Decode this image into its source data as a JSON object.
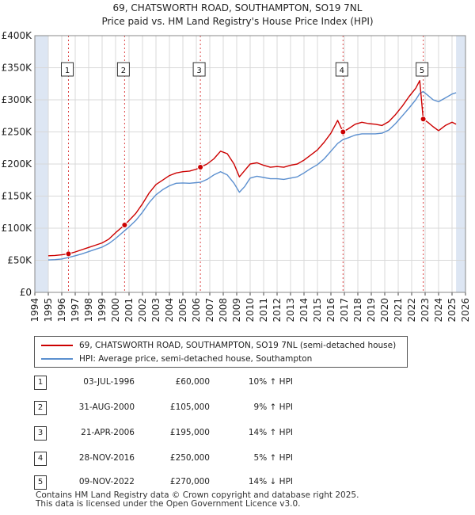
{
  "title_line1": "69, CHATSWORTH ROAD, SOUTHAMPTON, SO19 7NL",
  "title_line2": "Price paid vs. HM Land Registry's House Price Index (HPI)",
  "legend": {
    "property": "69, CHATSWORTH ROAD, SOUTHAMPTON, SO19 7NL (semi-detached house)",
    "hpi": "HPI: Average price, semi-detached house, Southampton"
  },
  "sales": [
    {
      "num": "1",
      "date": "03-JUL-1996",
      "price": "£60,000",
      "rel": "10% ↑ HPI"
    },
    {
      "num": "2",
      "date": "31-AUG-2000",
      "price": "£105,000",
      "rel": "9% ↑ HPI"
    },
    {
      "num": "3",
      "date": "21-APR-2006",
      "price": "£195,000",
      "rel": "14% ↑ HPI"
    },
    {
      "num": "4",
      "date": "28-NOV-2016",
      "price": "£250,000",
      "rel": "5% ↑ HPI"
    },
    {
      "num": "5",
      "date": "09-NOV-2022",
      "price": "£270,000",
      "rel": "14% ↓ HPI"
    }
  ],
  "footer_line1": "Contains HM Land Registry data © Crown copyright and database right 2025.",
  "footer_line2": "This data is licensed under the Open Government Licence v3.0.",
  "colors": {
    "property": "#cc0000",
    "hpi": "#5b8fcf",
    "shade": "#dde6f3",
    "grid": "#d8d8d8",
    "vline": "#dd4444"
  },
  "chart_data": {
    "type": "line",
    "title": "69, CHATSWORTH ROAD, SOUTHAMPTON, SO19 7NL",
    "subtitle": "Price paid vs. HM Land Registry's House Price Index (HPI)",
    "xlim": [
      1994,
      2026
    ],
    "ylim": [
      0,
      400000
    ],
    "x_ticks": [
      1994,
      1995,
      1996,
      1997,
      1998,
      1999,
      2000,
      2001,
      2002,
      2003,
      2004,
      2005,
      2006,
      2007,
      2008,
      2009,
      2010,
      2011,
      2012,
      2013,
      2014,
      2015,
      2016,
      2017,
      2018,
      2019,
      2020,
      2021,
      2022,
      2023,
      2024,
      2025,
      2026
    ],
    "y_ticks": [
      {
        "value": 0,
        "label": "£0"
      },
      {
        "value": 50000,
        "label": "£50K"
      },
      {
        "value": 100000,
        "label": "£100K"
      },
      {
        "value": 150000,
        "label": "£150K"
      },
      {
        "value": 200000,
        "label": "£200K"
      },
      {
        "value": 250000,
        "label": "£250K"
      },
      {
        "value": 300000,
        "label": "£300K"
      },
      {
        "value": 350000,
        "label": "£350K"
      },
      {
        "value": 400000,
        "label": "£400K"
      }
    ],
    "shaded_ranges": [
      [
        1994,
        1995.0
      ],
      [
        2025.3,
        2026
      ]
    ],
    "series": [
      {
        "name": "69, CHATSWORTH ROAD, SOUTHAMPTON, SO19 7NL (semi-detached house)",
        "points": [
          [
            1995.0,
            57000
          ],
          [
            1995.5,
            57500
          ],
          [
            1996.0,
            58500
          ],
          [
            1996.5,
            60000
          ],
          [
            1997.0,
            63000
          ],
          [
            1997.5,
            66500
          ],
          [
            1998.0,
            70000
          ],
          [
            1998.5,
            73500
          ],
          [
            1999.0,
            77000
          ],
          [
            1999.5,
            83000
          ],
          [
            2000.0,
            93000
          ],
          [
            2000.67,
            105000
          ],
          [
            2001.0,
            112000
          ],
          [
            2001.5,
            123000
          ],
          [
            2002.0,
            138000
          ],
          [
            2002.5,
            155000
          ],
          [
            2003.0,
            168000
          ],
          [
            2003.5,
            175000
          ],
          [
            2004.0,
            182000
          ],
          [
            2004.5,
            186000
          ],
          [
            2005.0,
            188000
          ],
          [
            2005.5,
            189000
          ],
          [
            2006.0,
            192000
          ],
          [
            2006.3,
            195000
          ],
          [
            2006.8,
            200000
          ],
          [
            2007.3,
            208000
          ],
          [
            2007.8,
            220000
          ],
          [
            2008.3,
            216000
          ],
          [
            2008.8,
            200000
          ],
          [
            2009.2,
            180000
          ],
          [
            2009.6,
            190000
          ],
          [
            2010.0,
            200000
          ],
          [
            2010.5,
            202000
          ],
          [
            2011.0,
            198000
          ],
          [
            2011.5,
            195000
          ],
          [
            2012.0,
            196000
          ],
          [
            2012.5,
            195000
          ],
          [
            2013.0,
            198000
          ],
          [
            2013.5,
            200000
          ],
          [
            2014.0,
            206000
          ],
          [
            2014.5,
            214000
          ],
          [
            2015.0,
            222000
          ],
          [
            2015.5,
            234000
          ],
          [
            2016.0,
            248000
          ],
          [
            2016.5,
            268000
          ],
          [
            2016.9,
            250000
          ],
          [
            2017.3,
            255000
          ],
          [
            2017.8,
            262000
          ],
          [
            2018.3,
            265000
          ],
          [
            2018.8,
            263000
          ],
          [
            2019.3,
            262000
          ],
          [
            2019.8,
            260000
          ],
          [
            2020.3,
            266000
          ],
          [
            2020.8,
            277000
          ],
          [
            2021.3,
            290000
          ],
          [
            2021.8,
            305000
          ],
          [
            2022.3,
            318000
          ],
          [
            2022.6,
            330000
          ],
          [
            2022.86,
            270000
          ],
          [
            2023.2,
            265000
          ],
          [
            2023.6,
            258000
          ],
          [
            2024.0,
            252000
          ],
          [
            2024.5,
            260000
          ],
          [
            2025.0,
            265000
          ],
          [
            2025.3,
            262000
          ]
        ]
      },
      {
        "name": "HPI: Average price, semi-detached house, Southampton",
        "points": [
          [
            1995.0,
            50500
          ],
          [
            1995.5,
            51000
          ],
          [
            1996.0,
            52000
          ],
          [
            1996.5,
            54500
          ],
          [
            1997.0,
            57000
          ],
          [
            1997.5,
            60000
          ],
          [
            1998.0,
            63500
          ],
          [
            1998.5,
            67000
          ],
          [
            1999.0,
            70500
          ],
          [
            1999.5,
            76000
          ],
          [
            2000.0,
            84000
          ],
          [
            2000.67,
            96000
          ],
          [
            2001.0,
            102000
          ],
          [
            2001.5,
            112000
          ],
          [
            2002.0,
            125000
          ],
          [
            2002.5,
            140000
          ],
          [
            2003.0,
            152000
          ],
          [
            2003.5,
            160000
          ],
          [
            2004.0,
            166000
          ],
          [
            2004.5,
            170000
          ],
          [
            2005.0,
            170500
          ],
          [
            2005.5,
            170000
          ],
          [
            2006.0,
            171000
          ],
          [
            2006.3,
            171500
          ],
          [
            2006.8,
            176000
          ],
          [
            2007.3,
            183000
          ],
          [
            2007.8,
            188000
          ],
          [
            2008.3,
            183000
          ],
          [
            2008.8,
            170000
          ],
          [
            2009.2,
            156000
          ],
          [
            2009.6,
            165000
          ],
          [
            2010.0,
            178000
          ],
          [
            2010.5,
            181000
          ],
          [
            2011.0,
            179000
          ],
          [
            2011.5,
            177000
          ],
          [
            2012.0,
            177000
          ],
          [
            2012.5,
            176000
          ],
          [
            2013.0,
            178000
          ],
          [
            2013.5,
            180000
          ],
          [
            2014.0,
            186000
          ],
          [
            2014.5,
            193000
          ],
          [
            2015.0,
            199000
          ],
          [
            2015.5,
            208000
          ],
          [
            2016.0,
            220000
          ],
          [
            2016.5,
            232000
          ],
          [
            2016.9,
            238000
          ],
          [
            2017.3,
            241000
          ],
          [
            2017.8,
            245000
          ],
          [
            2018.3,
            247000
          ],
          [
            2018.8,
            247000
          ],
          [
            2019.3,
            247000
          ],
          [
            2019.8,
            248000
          ],
          [
            2020.3,
            253000
          ],
          [
            2020.8,
            263000
          ],
          [
            2021.3,
            275000
          ],
          [
            2021.8,
            287000
          ],
          [
            2022.3,
            300000
          ],
          [
            2022.6,
            310000
          ],
          [
            2022.86,
            313000
          ],
          [
            2023.2,
            307000
          ],
          [
            2023.6,
            300000
          ],
          [
            2024.0,
            297000
          ],
          [
            2024.5,
            303000
          ],
          [
            2025.0,
            309000
          ],
          [
            2025.3,
            311000
          ]
        ]
      }
    ],
    "sales": [
      {
        "num": "1",
        "x": 1996.5,
        "value": 60000
      },
      {
        "num": "2",
        "x": 2000.67,
        "value": 105000
      },
      {
        "num": "3",
        "x": 2006.3,
        "value": 195000
      },
      {
        "num": "4",
        "x": 2016.9,
        "value": 250000
      },
      {
        "num": "5",
        "x": 2022.86,
        "value": 270000
      }
    ]
  }
}
